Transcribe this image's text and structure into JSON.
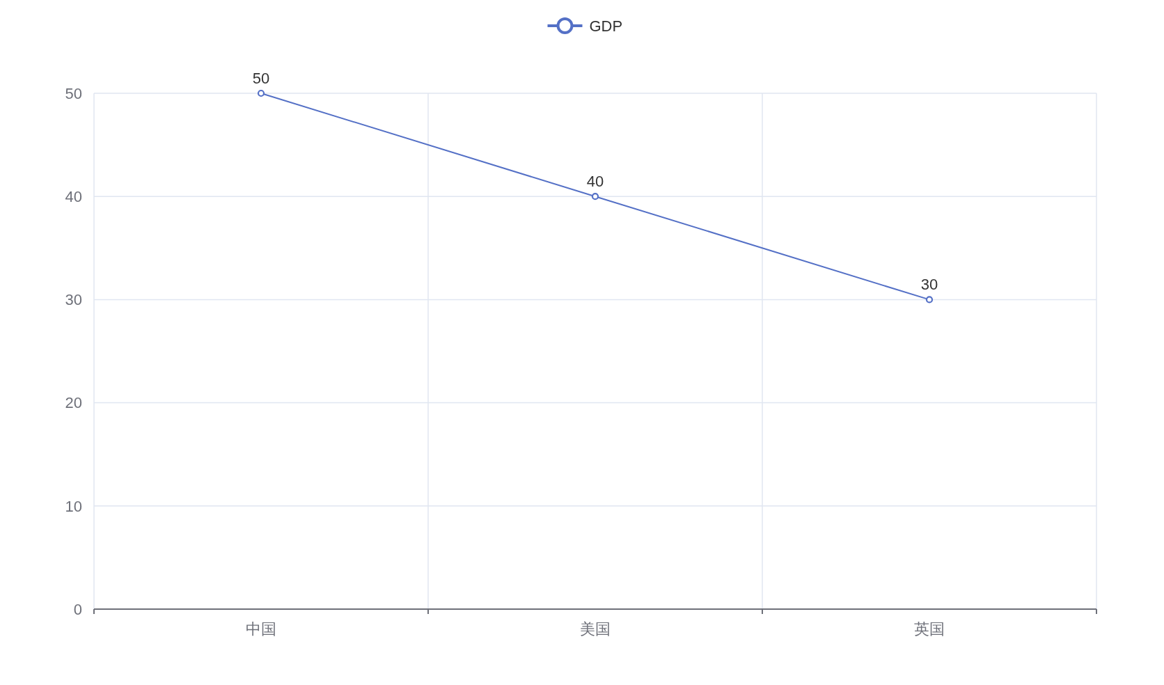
{
  "chart_data": {
    "type": "line",
    "categories": [
      "中国",
      "美国",
      "英国"
    ],
    "series": [
      {
        "name": "GDP",
        "color": "#5470c6",
        "values": [
          50,
          40,
          30
        ]
      }
    ],
    "ylim": [
      0,
      50
    ],
    "yticks": [
      0,
      10,
      20,
      30,
      40,
      50
    ],
    "grid": true,
    "legend": "top",
    "marker": "circle",
    "line_style": "solid",
    "data_labels": true
  }
}
